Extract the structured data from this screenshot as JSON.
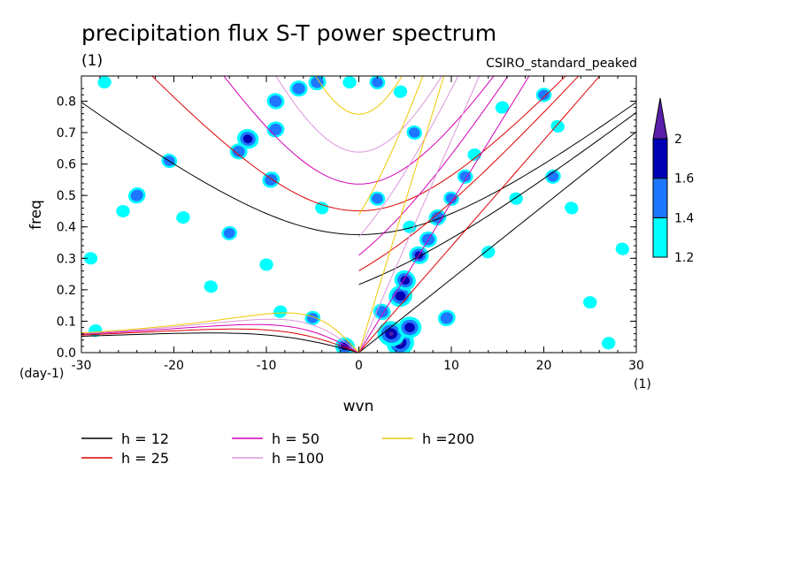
{
  "chart_data": {
    "type": "contour",
    "title": "precipitation flux S-T power spectrum",
    "subtitle": "(1)",
    "dataset": "CSIRO_standard_peaked",
    "xlabel": "wvn",
    "ylabel": "freq",
    "x_unit": "(1)",
    "y_unit": "(day-1)",
    "xlim": [
      -30,
      30
    ],
    "ylim": [
      0,
      0.88
    ],
    "x_ticks": [
      -30,
      -20,
      -10,
      0,
      10,
      20,
      30
    ],
    "x_tick_labels": [
      "-30",
      "-20",
      "-10",
      "0",
      "10",
      "20",
      "30"
    ],
    "y_ticks": [
      0,
      0.1,
      0.2,
      0.3,
      0.4,
      0.5,
      0.6,
      0.7,
      0.8
    ],
    "y_tick_labels": [
      "0.0",
      "0.1",
      "0.2",
      "0.3",
      "0.4",
      "0.5",
      "0.6",
      "0.7",
      "0.8"
    ],
    "colorbar": {
      "levels": [
        1.2,
        1.4,
        1.6,
        2
      ],
      "level_labels": [
        "1.2",
        "1.4",
        "1.6",
        "2"
      ],
      "colors": [
        "#00ffff",
        "#1e78ff",
        "#0000b4",
        "#5a1eaa"
      ],
      "extend": "max"
    },
    "dispersion_curves": [
      {
        "name": "h = 12",
        "h": 12,
        "color": "#000000"
      },
      {
        "name": "h = 25",
        "h": 25,
        "color": "#dc0000"
      },
      {
        "name": "h = 50",
        "h": 50,
        "color": "#d200b4"
      },
      {
        "name": "h =100",
        "h": 100,
        "color": "#dc96dc"
      },
      {
        "name": "h =200",
        "h": 200,
        "color": "#f0c800"
      }
    ],
    "spectral_peaks": [
      {
        "wvn": 4.5,
        "freq": 0.03,
        "value": 2.0
      },
      {
        "wvn": 3.5,
        "freq": 0.06,
        "value": 2.0
      },
      {
        "wvn": 5.5,
        "freq": 0.08,
        "value": 1.8
      },
      {
        "wvn": 4.5,
        "freq": 0.18,
        "value": 1.8
      },
      {
        "wvn": 5.0,
        "freq": 0.23,
        "value": 1.7
      },
      {
        "wvn": 6.5,
        "freq": 0.31,
        "value": 1.6
      },
      {
        "wvn": 7.5,
        "freq": 0.36,
        "value": 1.5
      },
      {
        "wvn": 8.5,
        "freq": 0.43,
        "value": 1.5
      },
      {
        "wvn": 10.0,
        "freq": 0.49,
        "value": 1.4
      },
      {
        "wvn": 11.5,
        "freq": 0.56,
        "value": 1.4
      },
      {
        "wvn": 12.5,
        "freq": 0.63,
        "value": 1.3
      },
      {
        "wvn": 9.5,
        "freq": 0.11,
        "value": 1.5
      },
      {
        "wvn": 2.5,
        "freq": 0.13,
        "value": 1.5
      },
      {
        "wvn": -1.5,
        "freq": 0.02,
        "value": 1.6
      },
      {
        "wvn": -5.0,
        "freq": 0.11,
        "value": 1.4
      },
      {
        "wvn": -8.5,
        "freq": 0.13,
        "value": 1.3
      },
      {
        "wvn": -12.0,
        "freq": 0.68,
        "value": 1.7
      },
      {
        "wvn": -13.0,
        "freq": 0.64,
        "value": 1.5
      },
      {
        "wvn": -9.0,
        "freq": 0.71,
        "value": 1.5
      },
      {
        "wvn": -9.5,
        "freq": 0.55,
        "value": 1.5
      },
      {
        "wvn": -9.0,
        "freq": 0.8,
        "value": 1.5
      },
      {
        "wvn": -6.5,
        "freq": 0.84,
        "value": 1.5
      },
      {
        "wvn": -4.5,
        "freq": 0.86,
        "value": 1.5
      },
      {
        "wvn": -24.0,
        "freq": 0.5,
        "value": 1.5
      },
      {
        "wvn": -20.5,
        "freq": 0.61,
        "value": 1.4
      },
      {
        "wvn": -25.5,
        "freq": 0.45,
        "value": 1.3
      },
      {
        "wvn": -14.0,
        "freq": 0.38,
        "value": 1.4
      },
      {
        "wvn": -4.0,
        "freq": 0.46,
        "value": 1.3
      },
      {
        "wvn": 2.0,
        "freq": 0.49,
        "value": 1.4
      },
      {
        "wvn": 5.5,
        "freq": 0.4,
        "value": 1.3
      },
      {
        "wvn": 21.0,
        "freq": 0.56,
        "value": 1.4
      },
      {
        "wvn": 23.0,
        "freq": 0.46,
        "value": 1.3
      },
      {
        "wvn": 17.0,
        "freq": 0.49,
        "value": 1.3
      },
      {
        "wvn": 20.0,
        "freq": 0.82,
        "value": 1.4
      },
      {
        "wvn": 15.5,
        "freq": 0.78,
        "value": 1.3
      },
      {
        "wvn": 21.5,
        "freq": 0.72,
        "value": 1.3
      },
      {
        "wvn": 2.0,
        "freq": 0.86,
        "value": 1.4
      },
      {
        "wvn": -1.0,
        "freq": 0.86,
        "value": 1.3
      },
      {
        "wvn": 4.5,
        "freq": 0.83,
        "value": 1.3
      },
      {
        "wvn": 6.0,
        "freq": 0.7,
        "value": 1.4
      },
      {
        "wvn": -29.0,
        "freq": 0.3,
        "value": 1.3
      },
      {
        "wvn": -27.5,
        "freq": 0.86,
        "value": 1.3
      },
      {
        "wvn": -28.5,
        "freq": 0.07,
        "value": 1.3
      },
      {
        "wvn": 28.5,
        "freq": 0.33,
        "value": 1.3
      },
      {
        "wvn": 25.0,
        "freq": 0.16,
        "value": 1.3
      },
      {
        "wvn": 27.0,
        "freq": 0.03,
        "value": 1.3
      },
      {
        "wvn": 14.0,
        "freq": 0.32,
        "value": 1.3
      },
      {
        "wvn": -16.0,
        "freq": 0.21,
        "value": 1.3
      },
      {
        "wvn": -10.0,
        "freq": 0.28,
        "value": 1.3
      },
      {
        "wvn": -19.0,
        "freq": 0.43,
        "value": 1.3
      }
    ]
  }
}
